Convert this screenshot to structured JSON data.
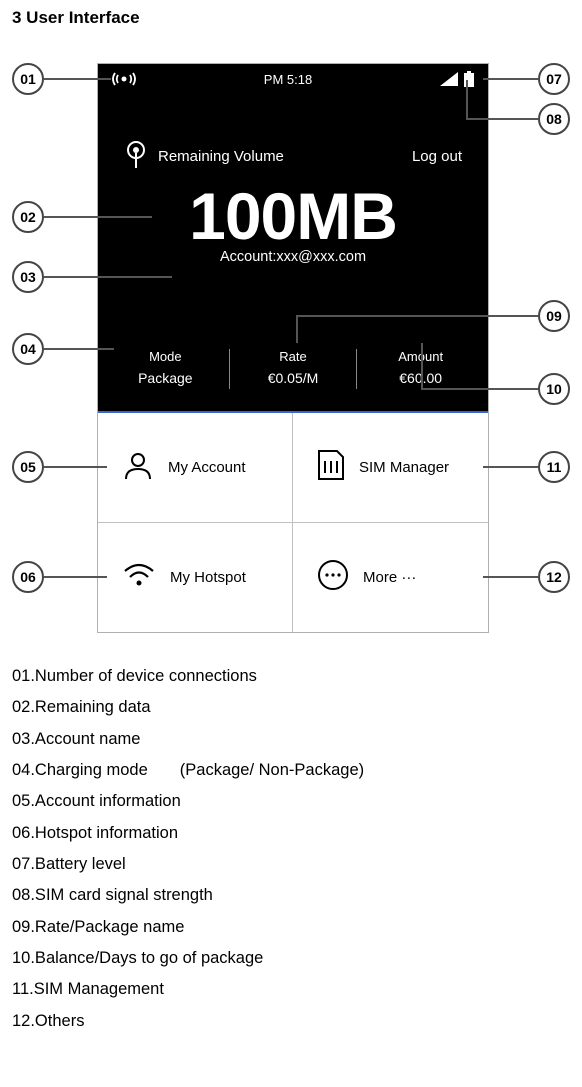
{
  "heading": "3 User Interface",
  "status": {
    "time": "PM 5:18"
  },
  "header": {
    "remaining_label": "Remaining Volume",
    "logout": "Log out"
  },
  "data": {
    "remaining": "100MB",
    "account_line": "Account:xxx@xxx.com"
  },
  "stats": {
    "mode_label": "Mode",
    "mode_value": "Package",
    "rate_label": "Rate",
    "rate_value": "€0.05/M",
    "amount_label": "Amount",
    "amount_value": "€60.00"
  },
  "tiles": {
    "account": "My Account",
    "sim": "SIM Manager",
    "hotspot": "My Hotspot",
    "more": "More ···"
  },
  "callouts": {
    "c01": "01",
    "c02": "02",
    "c03": "03",
    "c04": "04",
    "c05": "05",
    "c06": "06",
    "c07": "07",
    "c08": "08",
    "c09": "09",
    "c10": "10",
    "c11": "11",
    "c12": "12"
  },
  "legend": [
    {
      "n": "01",
      "text": "Number of device connections"
    },
    {
      "n": "02",
      "text": "Remaining data"
    },
    {
      "n": "03",
      "text": "Account name"
    },
    {
      "n": "04",
      "text": "Charging mode",
      "extra": "(Package/ Non-Package)"
    },
    {
      "n": "05",
      "text": "Account information"
    },
    {
      "n": "06",
      "text": "Hotspot information"
    },
    {
      "n": "07",
      "text": "Battery level"
    },
    {
      "n": "08",
      "text": "SIM card signal strength"
    },
    {
      "n": "09",
      "text": "Rate/Package name"
    },
    {
      "n": "10",
      "text": "Balance/Days to go of package"
    },
    {
      "n": "11",
      "text": "SIM Management"
    },
    {
      "n": "12",
      "text": "Others"
    }
  ]
}
